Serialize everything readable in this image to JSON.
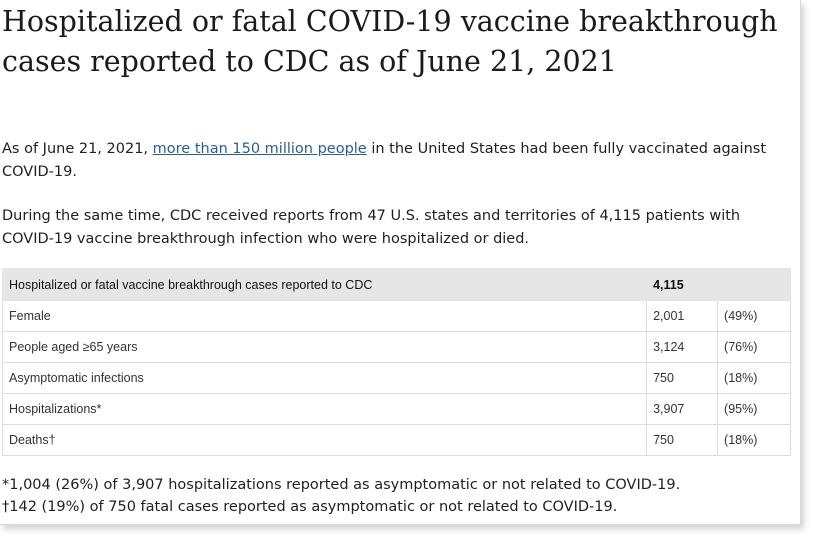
{
  "title": "Hospitalized or fatal COVID-19 vaccine breakthrough cases reported to CDC as of June 21, 2021",
  "paragraph1": {
    "before": "As of June 21, 2021, ",
    "link": "more than 150 million people",
    "after": " in the United States had been fully vaccinated against COVID-19."
  },
  "paragraph2": "During the same time, CDC received reports from 47 U.S. states and territories of 4,115 patients with COVID-19 vaccine breakthrough infection who were hospitalized or died.",
  "table": {
    "header": {
      "label": "Hospitalized or fatal vaccine breakthrough cases reported to CDC",
      "value": "4,115",
      "pct": ""
    },
    "rows": [
      {
        "label": "Female",
        "value": "2,001",
        "pct": "(49%)"
      },
      {
        "label": "People aged ≥65 years",
        "value": "3,124",
        "pct": "(76%)"
      },
      {
        "label": "Asymptomatic infections",
        "value": "750",
        "pct": "(18%)"
      },
      {
        "label": "Hospitalizations*",
        "value": "3,907",
        "pct": "(95%)"
      },
      {
        "label": "Deaths†",
        "value": "750",
        "pct": "(18%)"
      }
    ]
  },
  "footnotes": [
    "*1,004 (26%) of 3,907 hospitalizations reported as asymptomatic or not related to COVID-19.",
    "†142 (19%) of 750 fatal cases reported as asymptomatic or not related to COVID-19."
  ],
  "colors": {
    "link": "#2b5f8e",
    "table_header_bg": "#e6e6e6",
    "border": "#dcdcdc"
  }
}
